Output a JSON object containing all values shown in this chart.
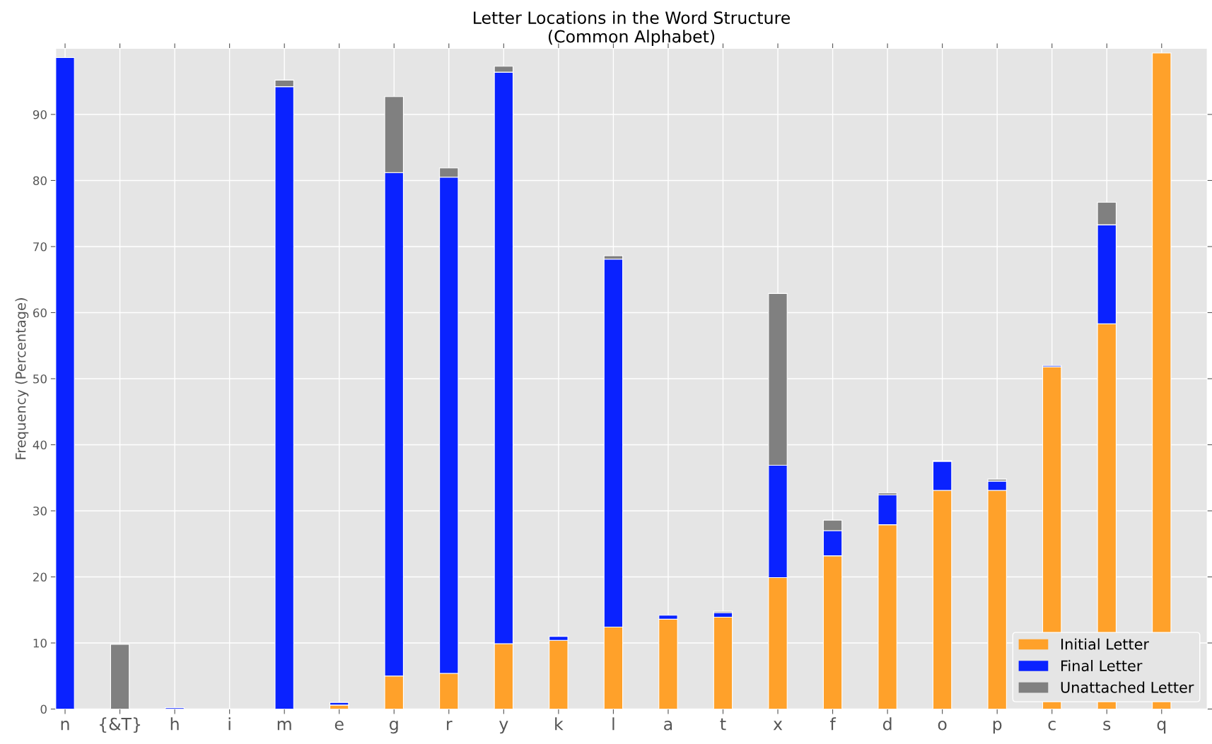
{
  "chart_data": {
    "type": "bar",
    "title": "Letter Locations in the Word Structure\n(Common Alphabet)",
    "ylabel": "Frequency (Percentage)",
    "categories": [
      "n",
      "{&T}",
      "h",
      "i",
      "m",
      "e",
      "g",
      "r",
      "y",
      "k",
      "l",
      "a",
      "t",
      "x",
      "f",
      "d",
      "o",
      "p",
      "c",
      "s",
      "q"
    ],
    "stacked": true,
    "series": [
      {
        "name": "Initial Letter",
        "color": "#ffa12a",
        "values": [
          0,
          0,
          0,
          0,
          0,
          0.6,
          5.0,
          5.4,
          9.9,
          10.4,
          12.4,
          13.6,
          13.9,
          19.9,
          23.2,
          27.9,
          33.1,
          33.1,
          51.8,
          58.3,
          99.3
        ]
      },
      {
        "name": "Final Letter",
        "color": "#0a22ff",
        "values": [
          98.6,
          0,
          0.2,
          null,
          94.2,
          0.4,
          76.2,
          75.1,
          86.5,
          0.6,
          55.7,
          0.6,
          0.7,
          17.0,
          3.8,
          4.5,
          4.4,
          1.4,
          0.2,
          15.0,
          0
        ]
      },
      {
        "name": "Unattached Letter",
        "color": "#808080",
        "values": [
          0,
          9.8,
          0,
          0,
          1.0,
          0,
          11.5,
          1.4,
          0.9,
          0,
          0.5,
          0,
          0.2,
          26.0,
          1.6,
          0.3,
          0.1,
          0.3,
          0,
          3.4,
          0
        ]
      }
    ],
    "ylim": [
      0,
      100
    ],
    "yticks": [
      0,
      10,
      20,
      30,
      40,
      50,
      60,
      70,
      80,
      90
    ],
    "grid": true,
    "legend": "bottom right"
  }
}
